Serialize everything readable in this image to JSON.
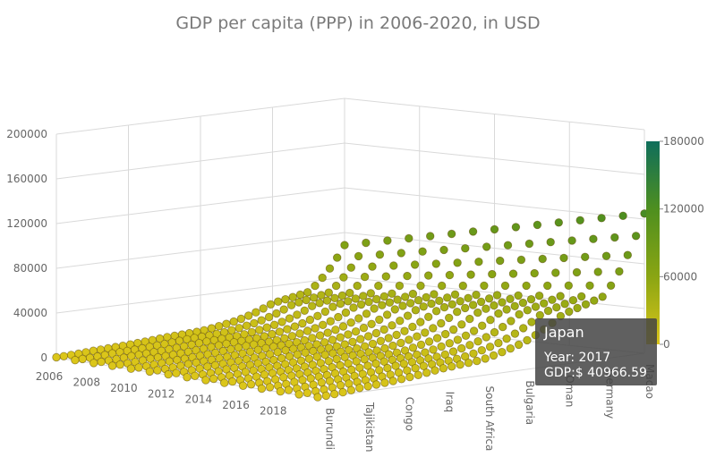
{
  "chart_data": {
    "type": "scatter",
    "title": "GDP per capita (PPP) in 2006-2020, in USD",
    "x_axis": {
      "ticks": [
        "2006",
        "2008",
        "2010",
        "2012",
        "2014",
        "2016",
        "2018"
      ]
    },
    "y_axis": {
      "ticks": [
        "Burundi",
        "Tajikistan",
        "Congo",
        "Iraq",
        "South Africa",
        "Bulgaria",
        "Oman",
        "Germany",
        "Macao"
      ]
    },
    "z_axis": {
      "ticks": [
        "0",
        "40000",
        "80000",
        "120000",
        "160000",
        "200000"
      ],
      "range": [
        0,
        200000
      ]
    },
    "colorbar": {
      "ticks": [
        "0",
        "60000",
        "120000",
        "180000"
      ],
      "range": [
        0,
        180000
      ],
      "colors": [
        "#dcc61a",
        "#8aa513",
        "#4e8f1f",
        "#0f6e5b"
      ]
    },
    "country_peak_gdp": [
      750,
      3800,
      6500,
      11000,
      14000,
      24000,
      45000,
      56000,
      125000
    ],
    "years": [
      2006,
      2007,
      2008,
      2009,
      2010,
      2011,
      2012,
      2013,
      2014,
      2015,
      2016,
      2017,
      2018,
      2019,
      2020
    ],
    "tooltip": {
      "name": "Japan",
      "year_label": "Year: 2017",
      "gdp_label": "GDP:$ 40966.59"
    }
  }
}
